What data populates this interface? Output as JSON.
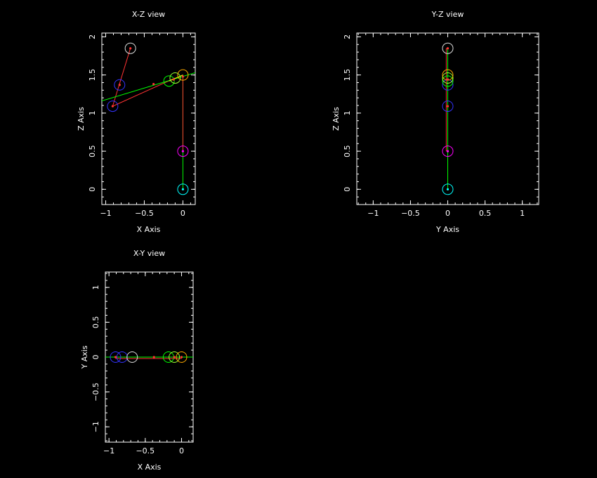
{
  "chart_data": [
    {
      "type": "scatter",
      "title": "X-Z view",
      "xlabel": "X Axis",
      "ylabel": "Z Axis",
      "xlim": [
        -1.05,
        0.16
      ],
      "ylim": [
        -0.2,
        2.05
      ],
      "xticks": [
        -1,
        -0.5,
        0
      ],
      "xtick_labels": [
        "−1",
        "−0.5",
        "0"
      ],
      "yticks": [
        0,
        0.5,
        1,
        1.5,
        2
      ],
      "ytick_labels": [
        "0",
        "0.5",
        "1",
        "1.5",
        "2"
      ],
      "circles": [
        {
          "x": 0,
          "y": 0,
          "color": "#00ffff"
        },
        {
          "x": 0,
          "y": 0.5,
          "color": "#ff00ff"
        },
        {
          "x": -0.91,
          "y": 1.09,
          "color": "#3333ff"
        },
        {
          "x": -0.82,
          "y": 1.37,
          "color": "#3333ff"
        },
        {
          "x": -0.68,
          "y": 1.85,
          "color": "#dddddd"
        },
        {
          "x": -0.18,
          "y": 1.42,
          "color": "#00ff00"
        },
        {
          "x": -0.1,
          "y": 1.46,
          "color": "#99ff33"
        },
        {
          "x": 0,
          "y": 1.5,
          "color": "#ffaa00"
        }
      ],
      "segments": [
        {
          "x1": 0,
          "y1": 0,
          "x2": 0,
          "y2": 0.5,
          "color": "#00ff00"
        },
        {
          "x1": 0,
          "y1": 0.5,
          "x2": 0,
          "y2": 1.5,
          "color": "#00ff00"
        },
        {
          "x1": 0,
          "y1": 0.5,
          "x2": 0,
          "y2": 1.48,
          "color": "#ff3333"
        },
        {
          "x1": -0.91,
          "y1": 1.09,
          "x2": -0.68,
          "y2": 1.85,
          "color": "#ff3333"
        },
        {
          "x1": -0.91,
          "y1": 1.09,
          "x2": -0.1,
          "y2": 1.46,
          "color": "#ff3333"
        },
        {
          "x1": -1.05,
          "y1": 1.16,
          "x2": 0.16,
          "y2": 1.53,
          "color": "#00ff00"
        },
        {
          "x1": -0.18,
          "y1": 1.42,
          "x2": 0,
          "y2": 1.5,
          "color": "#ffff00"
        }
      ],
      "markers": [
        {
          "x": 0,
          "y": 0,
          "color": "#00ffff"
        },
        {
          "x": 0,
          "y": 0.5,
          "color": "#ff00ff"
        },
        {
          "x": -0.91,
          "y": 1.09,
          "color": "#ff3333"
        },
        {
          "x": -0.82,
          "y": 1.37,
          "color": "#ff3333"
        },
        {
          "x": -0.68,
          "y": 1.85,
          "color": "#ff3333"
        },
        {
          "x": -0.38,
          "y": 1.38,
          "color": "#ff3333"
        },
        {
          "x": -0.12,
          "y": 1.44,
          "color": "#ff3333"
        },
        {
          "x": 0,
          "y": 1.48,
          "color": "#ff3333"
        }
      ]
    },
    {
      "type": "scatter",
      "title": "Y-Z view",
      "xlabel": "Y Axis",
      "ylabel": "Z Axis",
      "xlim": [
        -1.22,
        1.22
      ],
      "ylim": [
        -0.2,
        2.05
      ],
      "xticks": [
        -1,
        -0.5,
        0,
        0.5,
        1
      ],
      "xtick_labels": [
        "−1",
        "−0.5",
        "0",
        "0.5",
        "1"
      ],
      "yticks": [
        0,
        0.5,
        1,
        1.5,
        2
      ],
      "ytick_labels": [
        "0",
        "0.5",
        "1",
        "1.5",
        "2"
      ],
      "circles": [
        {
          "x": 0,
          "y": 0,
          "color": "#00ffff"
        },
        {
          "x": 0,
          "y": 0.5,
          "color": "#ff00ff"
        },
        {
          "x": 0,
          "y": 1.09,
          "color": "#3333ff"
        },
        {
          "x": 0,
          "y": 1.37,
          "color": "#3333ff"
        },
        {
          "x": 0,
          "y": 1.42,
          "color": "#00ff00"
        },
        {
          "x": 0,
          "y": 1.46,
          "color": "#99ff33"
        },
        {
          "x": 0,
          "y": 1.5,
          "color": "#ffaa00"
        },
        {
          "x": 0,
          "y": 1.85,
          "color": "#dddddd"
        }
      ],
      "segments": [
        {
          "x1": 0,
          "y1": 0,
          "x2": 0,
          "y2": 1.85,
          "color": "#00ff00"
        },
        {
          "x1": -0.02,
          "y1": 0.5,
          "x2": -0.02,
          "y2": 1.85,
          "color": "#ff3333"
        }
      ],
      "markers": [
        {
          "x": 0,
          "y": 0,
          "color": "#00ffff"
        },
        {
          "x": 0,
          "y": 0.5,
          "color": "#ff00ff"
        },
        {
          "x": 0,
          "y": 1.09,
          "color": "#ff3333"
        },
        {
          "x": 0,
          "y": 1.44,
          "color": "#ff3333"
        },
        {
          "x": 0,
          "y": 1.85,
          "color": "#ff3333"
        }
      ]
    },
    {
      "type": "scatter",
      "title": "X-Y view",
      "xlabel": "X Axis",
      "ylabel": "Y Axis",
      "xlim": [
        -1.05,
        0.16
      ],
      "ylim": [
        -1.22,
        1.22
      ],
      "xticks": [
        -1,
        -0.5,
        0
      ],
      "xtick_labels": [
        "−1",
        "−0.5",
        "0"
      ],
      "yticks": [
        -1,
        -0.5,
        0,
        0.5,
        1
      ],
      "ytick_labels": [
        "−1",
        "−0.5",
        "0",
        "0.5",
        "1"
      ],
      "circles": [
        {
          "x": -0.91,
          "y": 0,
          "color": "#3333ff"
        },
        {
          "x": -0.82,
          "y": 0,
          "color": "#3333ff"
        },
        {
          "x": -0.68,
          "y": 0,
          "color": "#dddddd"
        },
        {
          "x": -0.18,
          "y": 0,
          "color": "#00ff00"
        },
        {
          "x": -0.1,
          "y": 0,
          "color": "#99ff33"
        },
        {
          "x": 0,
          "y": 0,
          "color": "#ffaa00"
        }
      ],
      "segments": [
        {
          "x1": -1.05,
          "y1": 0,
          "x2": 0.16,
          "y2": 0,
          "color": "#00ff00"
        },
        {
          "x1": -0.91,
          "y1": -0.02,
          "x2": 0,
          "y2": -0.02,
          "color": "#ff3333"
        }
      ],
      "markers": [
        {
          "x": -0.91,
          "y": 0,
          "color": "#ff3333"
        },
        {
          "x": -0.38,
          "y": 0,
          "color": "#ff3333"
        },
        {
          "x": -0.1,
          "y": 0,
          "color": "#ff3333"
        },
        {
          "x": 0,
          "y": 0,
          "color": "#ff3333"
        }
      ]
    }
  ]
}
